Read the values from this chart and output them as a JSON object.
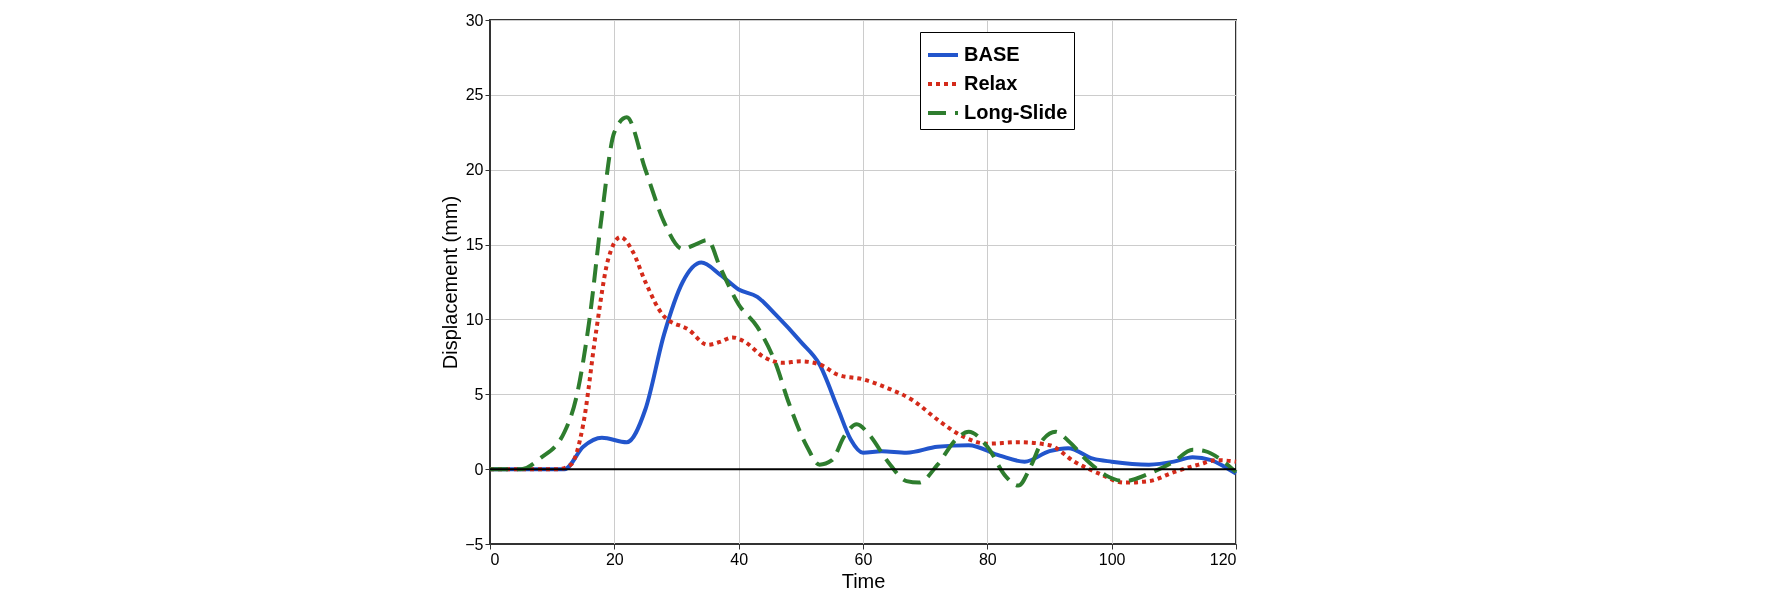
{
  "chart_data": {
    "type": "line",
    "xlabel": "Time",
    "ylabel": "Displacement (mm)",
    "xlim": [
      0,
      120
    ],
    "ylim": [
      -5,
      30
    ],
    "xticks": [
      0,
      20,
      40,
      60,
      80,
      100,
      120
    ],
    "yticks": [
      -5,
      0,
      5,
      10,
      15,
      20,
      25,
      30
    ],
    "grid": true,
    "legend": "top right",
    "marker": "none",
    "ref_lines": [
      {
        "axis": "y",
        "value": 0,
        "color": "#000000",
        "line_style": "solid"
      }
    ],
    "series": [
      {
        "name": "BASE",
        "color": "#2255cc",
        "line_style": "solid",
        "x": [
          0,
          12,
          15,
          18,
          22,
          25,
          28,
          31,
          34,
          37,
          40,
          43,
          46,
          50,
          53,
          56,
          58,
          60,
          63,
          67,
          72,
          77,
          82,
          86,
          90,
          93,
          97,
          100,
          106,
          110,
          113,
          116,
          118,
          120
        ],
        "values": [
          0,
          0,
          1.5,
          2.1,
          1.8,
          4,
          9,
          12.5,
          13.8,
          13,
          12,
          11.5,
          10.3,
          8.5,
          7,
          4,
          2,
          1.1,
          1.2,
          1.1,
          1.5,
          1.6,
          0.9,
          0.5,
          1.2,
          1.4,
          0.7,
          0.5,
          0.3,
          0.5,
          0.8,
          0.6,
          0.2,
          -0.3
        ]
      },
      {
        "name": "Relax",
        "color": "#d42a1a",
        "line_style": "dotted",
        "x": [
          0,
          11,
          13,
          15,
          17,
          19,
          21,
          23,
          25,
          28,
          32,
          35,
          37,
          39,
          41,
          44,
          47,
          50,
          53,
          56,
          60,
          64,
          68,
          72,
          76,
          80,
          85,
          90,
          94,
          98,
          102,
          106,
          110,
          114,
          117,
          120
        ],
        "values": [
          0,
          0,
          0.3,
          3,
          9,
          14,
          15.5,
          14.5,
          12.5,
          10.2,
          9.3,
          8.3,
          8.5,
          8.8,
          8.5,
          7.5,
          7.1,
          7.2,
          7,
          6.3,
          6,
          5.4,
          4.6,
          3.3,
          2.2,
          1.7,
          1.8,
          1.6,
          0.5,
          -0.3,
          -0.9,
          -0.8,
          -0.2,
          0.3,
          0.6,
          0.5
        ]
      },
      {
        "name": "Long-Slide",
        "color": "#2e7d2e",
        "line_style": "dashed",
        "x": [
          0,
          5,
          8,
          12,
          14,
          16,
          18,
          20,
          22,
          25,
          28,
          31,
          33,
          35,
          37,
          40,
          43,
          46,
          48,
          51,
          53,
          55,
          57,
          59,
          61,
          64,
          67,
          69,
          72,
          75,
          77,
          80,
          83,
          85,
          87,
          89,
          91,
          93,
          96,
          99,
          102,
          106,
          110,
          113,
          115,
          118,
          120
        ],
        "values": [
          0,
          0,
          0.7,
          2.5,
          5,
          10,
          17,
          22.5,
          23.5,
          20,
          16.5,
          14.7,
          15,
          15.3,
          13.5,
          11,
          9.5,
          7,
          4.5,
          1.5,
          0.3,
          0.6,
          2.2,
          3,
          2.3,
          0.5,
          -0.8,
          -0.9,
          0.3,
          2,
          2.5,
          1.5,
          -0.5,
          -1.1,
          0.2,
          2,
          2.5,
          1.9,
          0.6,
          -0.4,
          -0.8,
          -0.3,
          0.5,
          1.3,
          1.2,
          0.5,
          -0.2
        ]
      }
    ]
  }
}
